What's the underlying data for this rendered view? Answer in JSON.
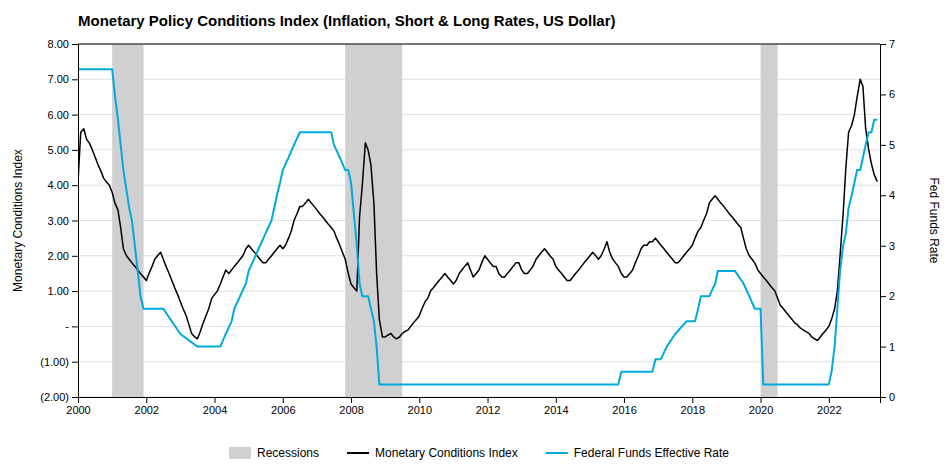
{
  "chart_data": {
    "type": "line",
    "title": "Monetary Policy Conditions Index (Inflation, Short & Long Rates, US Dollar)",
    "ylabel": "Monetary Conditions Index",
    "y2label": "Fed Funds Rate",
    "xlim": [
      2000,
      2023.5
    ],
    "xticks": [
      2000,
      2002,
      2004,
      2006,
      2008,
      2010,
      2012,
      2014,
      2016,
      2018,
      2020,
      2022
    ],
    "ylim": [
      -2.0,
      8.0
    ],
    "yticks": [
      {
        "value": -2.0,
        "label": "(2.00)"
      },
      {
        "value": -1.0,
        "label": "(1.00)"
      },
      {
        "value": 0.0,
        "label": "-"
      },
      {
        "value": 1.0,
        "label": "1.00"
      },
      {
        "value": 2.0,
        "label": "2.00"
      },
      {
        "value": 3.0,
        "label": "3.00"
      },
      {
        "value": 4.0,
        "label": "4.00"
      },
      {
        "value": 5.0,
        "label": "5.00"
      },
      {
        "value": 6.0,
        "label": "6.00"
      },
      {
        "value": 7.0,
        "label": "7.00"
      },
      {
        "value": 8.0,
        "label": "8.00"
      }
    ],
    "y2lim": [
      0,
      7
    ],
    "y2ticks": [
      7,
      6,
      5,
      4,
      3,
      2,
      1,
      0
    ],
    "grid": true,
    "legend": "bottom",
    "series": [
      {
        "name": "Recessions",
        "type": "span",
        "color": "#d0d0d0",
        "x": [
          2001.0,
          2007.83,
          2020.0
        ],
        "x_end": [
          2001.92,
          2009.5,
          2020.5
        ]
      },
      {
        "name": "Monetary Conditions Index",
        "type": "line",
        "color": "#000000",
        "x": [
          2000.0,
          2000.08,
          2000.17,
          2000.25,
          2000.33,
          2000.42,
          2000.5,
          2000.58,
          2000.67,
          2000.75,
          2000.83,
          2000.92,
          2001.0,
          2001.08,
          2001.17,
          2001.25,
          2001.33,
          2001.42,
          2001.5,
          2001.58,
          2001.67,
          2001.75,
          2001.83,
          2001.92,
          2002.0,
          2002.08,
          2002.17,
          2002.25,
          2002.33,
          2002.42,
          2002.5,
          2002.58,
          2002.67,
          2002.75,
          2002.83,
          2002.92,
          2003.0,
          2003.08,
          2003.17,
          2003.25,
          2003.33,
          2003.42,
          2003.5,
          2003.58,
          2003.67,
          2003.75,
          2003.83,
          2003.92,
          2004.0,
          2004.08,
          2004.17,
          2004.25,
          2004.33,
          2004.42,
          2004.5,
          2004.58,
          2004.67,
          2004.75,
          2004.83,
          2004.92,
          2005.0,
          2005.08,
          2005.17,
          2005.25,
          2005.33,
          2005.42,
          2005.5,
          2005.58,
          2005.67,
          2005.75,
          2005.83,
          2005.92,
          2006.0,
          2006.08,
          2006.17,
          2006.25,
          2006.33,
          2006.42,
          2006.5,
          2006.58,
          2006.67,
          2006.75,
          2006.83,
          2006.92,
          2007.0,
          2007.08,
          2007.17,
          2007.25,
          2007.33,
          2007.42,
          2007.5,
          2007.58,
          2007.67,
          2007.75,
          2007.83,
          2007.92,
          2008.0,
          2008.08,
          2008.17,
          2008.25,
          2008.33,
          2008.42,
          2008.5,
          2008.58,
          2008.67,
          2008.75,
          2008.83,
          2008.92,
          2009.0,
          2009.08,
          2009.17,
          2009.25,
          2009.33,
          2009.42,
          2009.5,
          2009.58,
          2009.67,
          2009.75,
          2009.83,
          2009.92,
          2010.0,
          2010.08,
          2010.17,
          2010.25,
          2010.33,
          2010.42,
          2010.5,
          2010.58,
          2010.67,
          2010.75,
          2010.83,
          2010.92,
          2011.0,
          2011.08,
          2011.17,
          2011.25,
          2011.33,
          2011.42,
          2011.5,
          2011.58,
          2011.67,
          2011.75,
          2011.83,
          2011.92,
          2012.0,
          2012.08,
          2012.17,
          2012.25,
          2012.33,
          2012.42,
          2012.5,
          2012.58,
          2012.67,
          2012.75,
          2012.83,
          2012.92,
          2013.0,
          2013.08,
          2013.17,
          2013.25,
          2013.33,
          2013.42,
          2013.5,
          2013.58,
          2013.67,
          2013.75,
          2013.83,
          2013.92,
          2014.0,
          2014.08,
          2014.17,
          2014.25,
          2014.33,
          2014.42,
          2014.5,
          2014.58,
          2014.67,
          2014.75,
          2014.83,
          2014.92,
          2015.0,
          2015.08,
          2015.17,
          2015.25,
          2015.33,
          2015.42,
          2015.5,
          2015.58,
          2015.67,
          2015.75,
          2015.83,
          2015.92,
          2016.0,
          2016.08,
          2016.17,
          2016.25,
          2016.33,
          2016.42,
          2016.5,
          2016.58,
          2016.67,
          2016.75,
          2016.83,
          2016.92,
          2017.0,
          2017.08,
          2017.17,
          2017.25,
          2017.33,
          2017.42,
          2017.5,
          2017.58,
          2017.67,
          2017.75,
          2017.83,
          2017.92,
          2018.0,
          2018.08,
          2018.17,
          2018.25,
          2018.33,
          2018.42,
          2018.5,
          2018.58,
          2018.67,
          2018.75,
          2018.83,
          2018.92,
          2019.0,
          2019.08,
          2019.17,
          2019.25,
          2019.33,
          2019.42,
          2019.5,
          2019.58,
          2019.67,
          2019.75,
          2019.83,
          2019.92,
          2020.0,
          2020.08,
          2020.17,
          2020.25,
          2020.33,
          2020.42,
          2020.5,
          2020.58,
          2020.67,
          2020.75,
          2020.83,
          2020.92,
          2021.0,
          2021.08,
          2021.17,
          2021.25,
          2021.33,
          2021.42,
          2021.5,
          2021.58,
          2021.67,
          2021.75,
          2021.83,
          2021.92,
          2022.0,
          2022.08,
          2022.17,
          2022.25,
          2022.33,
          2022.42,
          2022.5,
          2022.58,
          2022.67,
          2022.75,
          2022.83,
          2022.92,
          2023.0,
          2023.08,
          2023.17,
          2023.25,
          2023.33,
          2023.42
        ],
        "values": [
          4.1,
          5.5,
          5.6,
          5.3,
          5.2,
          5.0,
          4.8,
          4.6,
          4.4,
          4.2,
          4.1,
          4.0,
          3.8,
          3.5,
          3.3,
          2.8,
          2.2,
          2.0,
          1.9,
          1.8,
          1.7,
          1.6,
          1.5,
          1.4,
          1.3,
          1.5,
          1.7,
          1.9,
          2.0,
          2.1,
          1.9,
          1.7,
          1.5,
          1.3,
          1.1,
          0.9,
          0.7,
          0.5,
          0.3,
          0.05,
          -0.2,
          -0.3,
          -0.35,
          -0.15,
          0.1,
          0.3,
          0.5,
          0.8,
          0.9,
          1.0,
          1.2,
          1.4,
          1.6,
          1.5,
          1.6,
          1.7,
          1.8,
          1.9,
          2.0,
          2.2,
          2.3,
          2.2,
          2.1,
          2.0,
          1.9,
          1.8,
          1.8,
          1.9,
          2.0,
          2.1,
          2.2,
          2.3,
          2.2,
          2.3,
          2.5,
          2.7,
          3.0,
          3.2,
          3.4,
          3.4,
          3.5,
          3.6,
          3.5,
          3.4,
          3.3,
          3.2,
          3.1,
          3.0,
          2.9,
          2.8,
          2.7,
          2.5,
          2.3,
          2.1,
          1.9,
          1.5,
          1.2,
          1.1,
          1.0,
          3.1,
          4.0,
          5.2,
          5.0,
          4.6,
          3.5,
          1.5,
          0.2,
          -0.3,
          -0.3,
          -0.25,
          -0.2,
          -0.3,
          -0.35,
          -0.3,
          -0.2,
          -0.15,
          -0.1,
          0.0,
          0.1,
          0.2,
          0.3,
          0.5,
          0.7,
          0.8,
          1.0,
          1.1,
          1.2,
          1.3,
          1.4,
          1.5,
          1.4,
          1.3,
          1.2,
          1.3,
          1.5,
          1.6,
          1.7,
          1.8,
          1.6,
          1.4,
          1.5,
          1.6,
          1.8,
          2.0,
          1.9,
          1.8,
          1.7,
          1.7,
          1.5,
          1.4,
          1.4,
          1.5,
          1.6,
          1.7,
          1.8,
          1.8,
          1.6,
          1.5,
          1.5,
          1.6,
          1.7,
          1.9,
          2.0,
          2.1,
          2.2,
          2.1,
          2.0,
          1.9,
          1.7,
          1.6,
          1.5,
          1.4,
          1.3,
          1.3,
          1.4,
          1.5,
          1.6,
          1.7,
          1.8,
          1.9,
          2.0,
          2.1,
          2.0,
          1.9,
          2.0,
          2.2,
          2.4,
          2.1,
          1.9,
          1.8,
          1.7,
          1.5,
          1.4,
          1.4,
          1.5,
          1.6,
          1.8,
          2.0,
          2.2,
          2.3,
          2.3,
          2.4,
          2.4,
          2.5,
          2.4,
          2.3,
          2.2,
          2.1,
          2.0,
          1.9,
          1.8,
          1.8,
          1.9,
          2.0,
          2.1,
          2.2,
          2.3,
          2.5,
          2.7,
          2.8,
          3.0,
          3.2,
          3.5,
          3.6,
          3.7,
          3.6,
          3.5,
          3.4,
          3.3,
          3.2,
          3.1,
          3.0,
          2.9,
          2.8,
          2.5,
          2.2,
          2.0,
          1.9,
          1.8,
          1.6,
          1.5,
          1.4,
          1.3,
          1.2,
          1.1,
          1.0,
          0.8,
          0.6,
          0.5,
          0.4,
          0.3,
          0.2,
          0.1,
          0.05,
          -0.05,
          -0.1,
          -0.15,
          -0.2,
          -0.3,
          -0.35,
          -0.4,
          -0.3,
          -0.2,
          -0.1,
          0.0,
          0.2,
          0.5,
          1.0,
          2.0,
          3.2,
          4.5,
          5.5,
          5.7,
          6.0,
          6.5,
          7.0,
          6.8,
          5.6,
          5.0,
          4.6,
          4.3,
          4.1
        ]
      },
      {
        "name": "Federal Funds Effective Rate",
        "type": "line",
        "color": "#00aadd",
        "axis": "y2",
        "x": [
          2000.0,
          2000.17,
          2000.5,
          2000.75,
          2001.0,
          2001.08,
          2001.17,
          2001.25,
          2001.33,
          2001.5,
          2001.58,
          2001.75,
          2001.83,
          2001.92,
          2002.0,
          2002.5,
          2003.0,
          2003.5,
          2004.0,
          2004.17,
          2004.33,
          2004.5,
          2004.58,
          2004.75,
          2004.92,
          2005.0,
          2005.17,
          2005.33,
          2005.5,
          2005.67,
          2005.83,
          2005.92,
          2006.0,
          2006.17,
          2006.33,
          2006.5,
          2006.67,
          2006.75,
          2007.0,
          2007.42,
          2007.5,
          2007.67,
          2007.83,
          2007.92,
          2008.0,
          2008.17,
          2008.25,
          2008.33,
          2008.42,
          2008.5,
          2008.67,
          2008.75,
          2008.83,
          2008.92,
          2009.0,
          2009.5,
          2010.0,
          2010.5,
          2011.0,
          2011.5,
          2012.0,
          2012.5,
          2013.0,
          2013.5,
          2014.0,
          2014.5,
          2015.0,
          2015.83,
          2015.92,
          2016.0,
          2016.08,
          2016.83,
          2016.92,
          2017.0,
          2017.08,
          2017.25,
          2017.5,
          2017.83,
          2017.92,
          2018.0,
          2018.08,
          2018.17,
          2018.25,
          2018.33,
          2018.5,
          2018.67,
          2018.75,
          2018.92,
          2019.0,
          2019.25,
          2019.5,
          2019.67,
          2019.83,
          2019.92,
          2020.0,
          2020.08,
          2020.17,
          2020.25,
          2020.33,
          2020.42,
          2020.5,
          2021.0,
          2021.5,
          2022.0,
          2022.08,
          2022.17,
          2022.25,
          2022.33,
          2022.42,
          2022.5,
          2022.58,
          2022.67,
          2022.75,
          2022.83,
          2022.92,
          2023.0,
          2023.08,
          2023.17,
          2023.25,
          2023.33,
          2023.42
        ],
        "values": [
          6.5,
          6.5,
          6.5,
          6.5,
          6.5,
          6.0,
          5.5,
          5.0,
          4.5,
          3.75,
          3.5,
          2.5,
          2.0,
          1.75,
          1.75,
          1.75,
          1.25,
          1.0,
          1.0,
          1.0,
          1.25,
          1.5,
          1.75,
          2.0,
          2.25,
          2.5,
          2.75,
          3.0,
          3.25,
          3.5,
          4.0,
          4.25,
          4.5,
          4.75,
          5.0,
          5.25,
          5.25,
          5.25,
          5.25,
          5.25,
          5.0,
          4.75,
          4.5,
          4.5,
          4.25,
          3.0,
          2.25,
          2.0,
          2.0,
          2.0,
          1.5,
          1.0,
          0.25,
          0.25,
          0.25,
          0.25,
          0.25,
          0.25,
          0.25,
          0.25,
          0.25,
          0.25,
          0.25,
          0.25,
          0.25,
          0.25,
          0.25,
          0.25,
          0.5,
          0.5,
          0.5,
          0.5,
          0.75,
          0.75,
          0.75,
          1.0,
          1.25,
          1.5,
          1.5,
          1.5,
          1.5,
          1.75,
          2.0,
          2.0,
          2.0,
          2.25,
          2.5,
          2.5,
          2.5,
          2.5,
          2.25,
          2.0,
          1.75,
          1.75,
          1.75,
          0.25,
          0.25,
          0.25,
          0.25,
          0.25,
          0.25,
          0.25,
          0.25,
          0.25,
          0.5,
          1.0,
          1.75,
          2.5,
          3.0,
          3.25,
          3.75,
          4.0,
          4.25,
          4.5,
          4.5,
          4.75,
          5.0,
          5.25,
          5.25,
          5.5,
          5.5
        ]
      }
    ]
  }
}
